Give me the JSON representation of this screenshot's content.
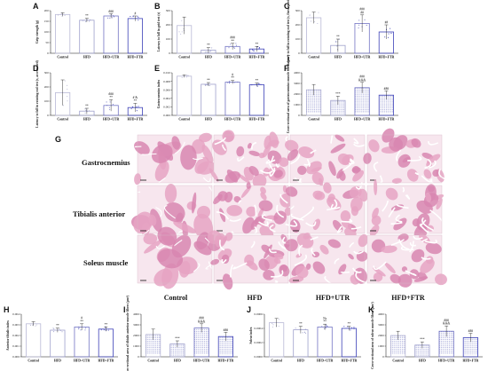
{
  "colors": {
    "Control": "#b9b9d6",
    "HFD": "#9ea0cc",
    "HFD+UTR": "#7375c4",
    "HFD+FTR": "#3c41b8",
    "tissue_bg": "#ffffff",
    "fiber": "#e6a3c3",
    "fiber_dark": "#d886b0"
  },
  "groups": [
    "Control",
    "HFD",
    "HFD+UTR",
    "HFD+FTR"
  ],
  "histology": {
    "label": "G",
    "rows": [
      "Gastrocnemius",
      "Tibialis anterior",
      "Soleus muscle"
    ],
    "columns": [
      "Control",
      "HFD",
      "HFD+UTR",
      "HFD+FTR"
    ]
  },
  "chart_data": [
    {
      "id": "A",
      "type": "bar",
      "ylabel": "Grip strength (g)",
      "ticks": [
        "0",
        "50",
        "100",
        "150",
        "200"
      ],
      "ylim": [
        0,
        200
      ],
      "categories": [
        "Control",
        "HFD",
        "HFD+UTR",
        "HFD+FTR"
      ],
      "values": [
        182,
        155,
        175,
        163
      ],
      "errors": [
        8,
        9,
        10,
        12
      ],
      "sig": [
        "",
        "**",
        "###",
        "#"
      ],
      "hatch": false
    },
    {
      "id": "B",
      "type": "bar",
      "ylabel": "Latency to fall in grid test (s)",
      "ticks": [
        "0",
        "100",
        "200",
        "300"
      ],
      "ylim": [
        0,
        300
      ],
      "categories": [
        "Control",
        "HFD",
        "HFD+UTR",
        "HFD+FTR"
      ],
      "values": [
        195,
        22,
        48,
        30
      ],
      "errors": [
        60,
        18,
        22,
        18
      ],
      "sig": [
        "",
        "**",
        "###\n**",
        "**"
      ],
      "hatch": false
    },
    {
      "id": "C",
      "type": "bar",
      "ylabel": "Latency to fall in rotating rod test (s, fixed speed)",
      "ticks": [
        "0",
        "100",
        "200",
        "300"
      ],
      "ylim": [
        0,
        300
      ],
      "categories": [
        "Control",
        "HFD",
        "HFD+UTR",
        "HFD+FTR"
      ],
      "values": [
        250,
        55,
        210,
        150
      ],
      "errors": [
        40,
        45,
        60,
        50
      ],
      "sig": [
        "",
        "**",
        "###\n##",
        "##"
      ],
      "hatch": false
    },
    {
      "id": "D",
      "type": "bar",
      "ylabel": "Latency to fall in rotating rod test (s, accelerated)",
      "ticks": [
        "0",
        "100",
        "200",
        "300"
      ],
      "ylim": [
        0,
        300
      ],
      "categories": [
        "Control",
        "HFD",
        "HFD+UTR",
        "HFD+FTR"
      ],
      "values": [
        160,
        30,
        70,
        55
      ],
      "errors": [
        90,
        20,
        40,
        30
      ],
      "sig": [
        "",
        "**",
        "###\n**",
        "# &\n**"
      ],
      "hatch": false
    },
    {
      "id": "E",
      "type": "bar",
      "ylabel": "Gastrocnemius index",
      "ticks": [
        "0.000",
        "0.002",
        "0.004",
        "0.006",
        "0.008",
        "0.010"
      ],
      "ylim": [
        0,
        0.01
      ],
      "categories": [
        "Control",
        "HFD",
        "HFD+UTR",
        "HFD+FTR"
      ],
      "values": [
        0.0092,
        0.0073,
        0.0078,
        0.0072
      ],
      "errors": [
        0.0003,
        0.0004,
        0.0004,
        0.0004
      ],
      "sig": [
        "",
        "**",
        "#\n**",
        "**"
      ],
      "hatch": false
    },
    {
      "id": "F",
      "type": "bar",
      "ylabel": "Cross-sectional area of gastrocnemius muscle fibers (μm²)",
      "ticks": [
        "0",
        "1000",
        "2000",
        "3000",
        "4000"
      ],
      "ylim": [
        0,
        4000
      ],
      "categories": [
        "Control",
        "HFD",
        "HFD+UTR",
        "HFD+FTR"
      ],
      "values": [
        2400,
        1400,
        2600,
        1900
      ],
      "errors": [
        500,
        400,
        500,
        400
      ],
      "sig": [
        "",
        "***",
        "###\n&&&",
        "###"
      ],
      "hatch": true
    },
    {
      "id": "H",
      "type": "bar",
      "ylabel": "Anterior tibialis index",
      "ticks": [
        "0.000",
        "0.001",
        "0.002",
        "0.003",
        "0.004"
      ],
      "ylim": [
        0,
        0.004
      ],
      "categories": [
        "Control",
        "HFD",
        "HFD+UTR",
        "HFD+FTR"
      ],
      "values": [
        0.0031,
        0.0025,
        0.0028,
        0.0026
      ],
      "errors": [
        0.0002,
        0.0002,
        0.0003,
        0.0002
      ],
      "sig": [
        "",
        "**",
        "#\n**",
        "**"
      ],
      "hatch": false
    },
    {
      "id": "I",
      "type": "bar",
      "ylabel": "Cross-sectional area of tibialis anterior muscle fibers (μm²)",
      "ticks": [
        "0",
        "1000",
        "2000",
        "3000",
        "4000"
      ],
      "ylim": [
        0,
        4000
      ],
      "categories": [
        "Control",
        "HFD",
        "HFD+UTR",
        "HFD+FTR"
      ],
      "values": [
        2100,
        1200,
        2700,
        1900
      ],
      "errors": [
        500,
        300,
        400,
        400
      ],
      "sig": [
        "",
        "***",
        "###\n&&&",
        "###"
      ],
      "hatch": true
    },
    {
      "id": "J",
      "type": "bar",
      "ylabel": "Soleus index",
      "ticks": [
        "0.0000",
        "0.0002",
        "0.0004",
        "0.0006"
      ],
      "ylim": [
        0,
        0.0006
      ],
      "categories": [
        "Control",
        "HFD",
        "HFD+UTR",
        "HFD+FTR"
      ],
      "values": [
        0.00048,
        0.00038,
        0.00042,
        0.0004
      ],
      "errors": [
        6e-05,
        5e-05,
        4e-05,
        3e-05
      ],
      "sig": [
        "",
        "**",
        "Ns\n**",
        "**"
      ],
      "hatch": false
    },
    {
      "id": "K",
      "type": "bar",
      "ylabel": "Cross-sectional area of soleus muscle fibers (μm²)",
      "ticks": [
        "0",
        "1000",
        "2000",
        "3000",
        "4000"
      ],
      "ylim": [
        0,
        4000
      ],
      "categories": [
        "Control",
        "HFD",
        "HFD+UTR",
        "HFD+FTR"
      ],
      "values": [
        2000,
        1100,
        2400,
        1800
      ],
      "errors": [
        400,
        300,
        500,
        400
      ],
      "sig": [
        "",
        "***",
        "###\n&&&",
        "###"
      ],
      "hatch": true
    }
  ]
}
